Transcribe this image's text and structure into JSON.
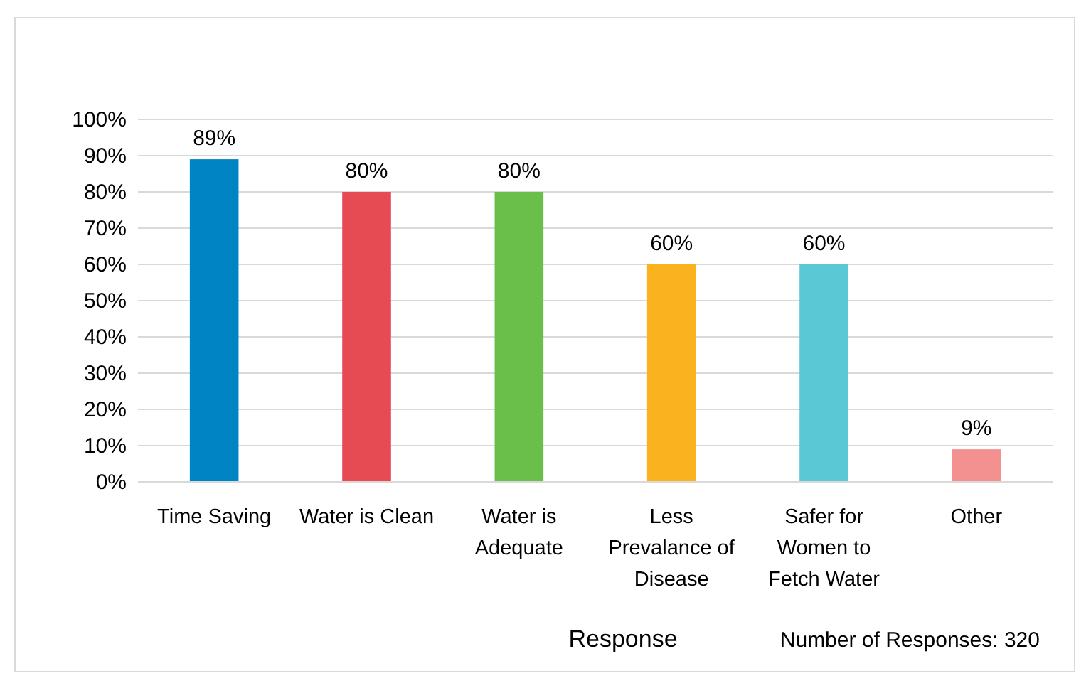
{
  "chart_data": {
    "type": "bar",
    "xlabel": "Response",
    "annotations": [
      "Number of Responses: 320"
    ],
    "categories": [
      "Time Saving",
      "Water is Clean",
      "Water is Adequate",
      "Less Prevalance of Disease",
      "Safer for Women to Fetch Water",
      "Other"
    ],
    "values": [
      89,
      80,
      80,
      60,
      60,
      9
    ],
    "colors": [
      "#0084c3",
      "#e64b53",
      "#6abf4b",
      "#fbb21f",
      "#5bc8d6",
      "#f39191"
    ],
    "value_labels": [
      "89%",
      "80%",
      "80%",
      "60%",
      "60%",
      "9%"
    ],
    "ylim": [
      0,
      100
    ],
    "yticks": [
      {
        "value": 0,
        "label": "0%"
      },
      {
        "value": 10,
        "label": "10%"
      },
      {
        "value": 20,
        "label": "20%"
      },
      {
        "value": 30,
        "label": "30%"
      },
      {
        "value": 40,
        "label": "40%"
      },
      {
        "value": 50,
        "label": "50%"
      },
      {
        "value": 60,
        "label": "60%"
      },
      {
        "value": 70,
        "label": "70%"
      },
      {
        "value": 80,
        "label": "80%"
      },
      {
        "value": 90,
        "label": "90%"
      },
      {
        "value": 100,
        "label": "100%"
      }
    ],
    "grid": "y"
  }
}
